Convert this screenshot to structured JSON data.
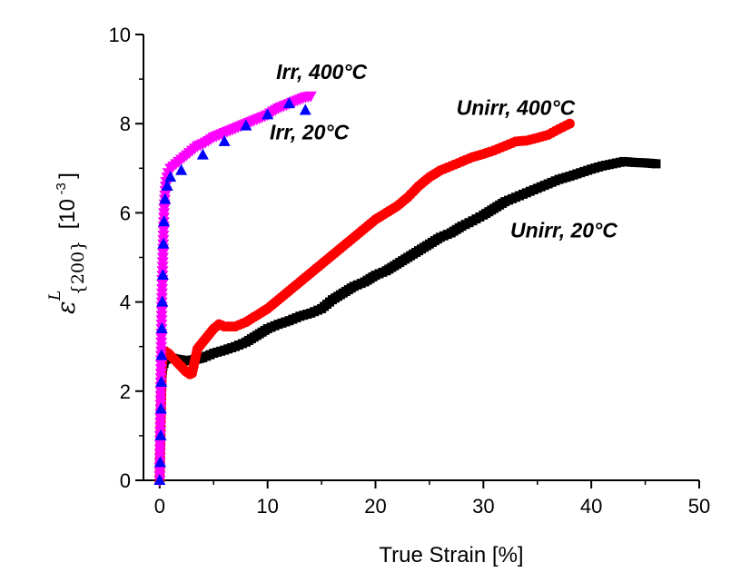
{
  "chart_data": {
    "type": "scatter",
    "title": "",
    "xlabel": "True Strain [%]",
    "ylabel": {
      "symbol": "ε",
      "superscript": "L",
      "subscript": "{200}",
      "unit_prefix": "[10",
      "unit_exponent": "-3",
      "unit_suffix": "]"
    },
    "xlim": [
      -1.5,
      50
    ],
    "ylim": [
      0,
      10
    ],
    "xticks": [
      0,
      10,
      20,
      30,
      40,
      50
    ],
    "yticks": [
      0,
      2,
      4,
      6,
      8,
      10
    ],
    "xtick_labels": [
      "0",
      "10",
      "20",
      "30",
      "40",
      "50"
    ],
    "ytick_labels": [
      "0",
      "2",
      "4",
      "6",
      "8",
      "10"
    ],
    "grid": false,
    "series": [
      {
        "name": "Unirr, 20°C",
        "color": "#000000",
        "marker": "square",
        "points": [
          [
            0,
            0.0
          ],
          [
            0.05,
            0.6
          ],
          [
            0.1,
            1.3
          ],
          [
            0.15,
            1.9
          ],
          [
            0.2,
            2.3
          ],
          [
            0.3,
            2.55
          ],
          [
            0.5,
            2.7
          ],
          [
            1,
            2.75
          ],
          [
            1.5,
            2.72
          ],
          [
            2,
            2.7
          ],
          [
            2.5,
            2.68
          ],
          [
            3,
            2.7
          ],
          [
            3.5,
            2.72
          ],
          [
            4,
            2.75
          ],
          [
            5,
            2.85
          ],
          [
            6,
            2.92
          ],
          [
            7,
            3.0
          ],
          [
            8,
            3.1
          ],
          [
            9,
            3.25
          ],
          [
            10,
            3.4
          ],
          [
            11,
            3.5
          ],
          [
            12,
            3.58
          ],
          [
            13,
            3.68
          ],
          [
            14,
            3.75
          ],
          [
            15,
            3.85
          ],
          [
            16,
            4.05
          ],
          [
            17,
            4.2
          ],
          [
            18,
            4.35
          ],
          [
            19,
            4.45
          ],
          [
            20,
            4.6
          ],
          [
            21,
            4.7
          ],
          [
            22,
            4.85
          ],
          [
            23,
            5.0
          ],
          [
            24,
            5.15
          ],
          [
            25,
            5.3
          ],
          [
            26,
            5.45
          ],
          [
            27,
            5.55
          ],
          [
            28,
            5.7
          ],
          [
            29,
            5.82
          ],
          [
            30,
            5.95
          ],
          [
            31,
            6.1
          ],
          [
            32,
            6.25
          ],
          [
            33,
            6.35
          ],
          [
            34,
            6.45
          ],
          [
            35,
            6.55
          ],
          [
            36,
            6.65
          ],
          [
            37,
            6.75
          ],
          [
            38,
            6.82
          ],
          [
            39,
            6.9
          ],
          [
            40,
            6.98
          ],
          [
            41,
            7.05
          ],
          [
            42,
            7.1
          ],
          [
            43,
            7.15
          ],
          [
            44,
            7.13
          ],
          [
            45,
            7.12
          ],
          [
            46,
            7.1
          ]
        ]
      },
      {
        "name": "Unirr, 400°C",
        "color": "#ff0000",
        "marker": "circle",
        "points": [
          [
            0,
            0.0
          ],
          [
            0.05,
            0.6
          ],
          [
            0.1,
            1.3
          ],
          [
            0.15,
            1.9
          ],
          [
            0.2,
            2.5
          ],
          [
            0.3,
            2.85
          ],
          [
            0.5,
            2.9
          ],
          [
            0.8,
            2.85
          ],
          [
            1.2,
            2.75
          ],
          [
            1.6,
            2.65
          ],
          [
            2,
            2.55
          ],
          [
            2.4,
            2.45
          ],
          [
            2.8,
            2.38
          ],
          [
            3,
            2.4
          ],
          [
            3.5,
            2.95
          ],
          [
            4,
            3.1
          ],
          [
            4.5,
            3.25
          ],
          [
            5,
            3.4
          ],
          [
            5.5,
            3.5
          ],
          [
            6,
            3.45
          ],
          [
            7,
            3.45
          ],
          [
            8,
            3.55
          ],
          [
            9,
            3.7
          ],
          [
            10,
            3.85
          ],
          [
            11,
            4.05
          ],
          [
            12,
            4.25
          ],
          [
            13,
            4.45
          ],
          [
            14,
            4.65
          ],
          [
            15,
            4.85
          ],
          [
            16,
            5.05
          ],
          [
            17,
            5.25
          ],
          [
            18,
            5.45
          ],
          [
            19,
            5.65
          ],
          [
            20,
            5.85
          ],
          [
            21,
            6.0
          ],
          [
            22,
            6.15
          ],
          [
            23,
            6.35
          ],
          [
            24,
            6.6
          ],
          [
            25,
            6.8
          ],
          [
            26,
            6.95
          ],
          [
            27,
            7.05
          ],
          [
            28,
            7.15
          ],
          [
            29,
            7.25
          ],
          [
            30,
            7.32
          ],
          [
            31,
            7.4
          ],
          [
            32,
            7.5
          ],
          [
            33,
            7.6
          ],
          [
            34,
            7.62
          ],
          [
            35,
            7.68
          ],
          [
            36,
            7.75
          ],
          [
            37,
            7.88
          ],
          [
            38,
            8.0
          ]
        ]
      },
      {
        "name": "Irr, 20°C",
        "color": "#0000ff",
        "marker": "triangle-up",
        "points": [
          [
            0,
            0.0
          ],
          [
            0.05,
            0.4
          ],
          [
            0.1,
            1.0
          ],
          [
            0.12,
            1.6
          ],
          [
            0.15,
            2.2
          ],
          [
            0.18,
            2.8
          ],
          [
            0.2,
            3.4
          ],
          [
            0.25,
            4.0
          ],
          [
            0.3,
            4.6
          ],
          [
            0.35,
            5.3
          ],
          [
            0.4,
            5.8
          ],
          [
            0.5,
            6.3
          ],
          [
            0.7,
            6.6
          ],
          [
            1,
            6.8
          ],
          [
            2,
            6.95
          ],
          [
            4,
            7.3
          ],
          [
            6,
            7.6
          ],
          [
            8,
            7.95
          ],
          [
            10,
            8.2
          ],
          [
            12,
            8.45
          ],
          [
            13.5,
            8.3
          ]
        ]
      },
      {
        "name": "Irr, 400°C",
        "color": "#ff00ff",
        "marker": "triangle-down",
        "points": [
          [
            0,
            0.0
          ],
          [
            0.02,
            0.5
          ],
          [
            0.05,
            1.0
          ],
          [
            0.08,
            1.5
          ],
          [
            0.1,
            2.0
          ],
          [
            0.12,
            2.5
          ],
          [
            0.15,
            3.0
          ],
          [
            0.18,
            3.5
          ],
          [
            0.2,
            4.0
          ],
          [
            0.25,
            4.5
          ],
          [
            0.3,
            5.0
          ],
          [
            0.35,
            5.5
          ],
          [
            0.4,
            6.0
          ],
          [
            0.5,
            6.4
          ],
          [
            0.6,
            6.7
          ],
          [
            0.8,
            6.9
          ],
          [
            1,
            7.0
          ],
          [
            1.5,
            7.1
          ],
          [
            2,
            7.2
          ],
          [
            2.5,
            7.3
          ],
          [
            3,
            7.4
          ],
          [
            3.5,
            7.5
          ],
          [
            4,
            7.55
          ],
          [
            4.5,
            7.62
          ],
          [
            5,
            7.7
          ],
          [
            5.5,
            7.75
          ],
          [
            6,
            7.8
          ],
          [
            6.5,
            7.85
          ],
          [
            7,
            7.9
          ],
          [
            7.5,
            7.95
          ],
          [
            8,
            8.0
          ],
          [
            8.5,
            8.05
          ],
          [
            9,
            8.1
          ],
          [
            9.5,
            8.15
          ],
          [
            10,
            8.2
          ],
          [
            10.5,
            8.28
          ],
          [
            11,
            8.35
          ],
          [
            11.5,
            8.4
          ],
          [
            12,
            8.45
          ],
          [
            12.5,
            8.5
          ],
          [
            13,
            8.55
          ],
          [
            13.5,
            8.6
          ],
          [
            14,
            8.62
          ]
        ]
      }
    ],
    "annotations": [
      {
        "text": "Irr, 400°C",
        "x": 10.8,
        "y": 9.0
      },
      {
        "text": "Irr, 20°C",
        "x": 10.2,
        "y": 7.65
      },
      {
        "text": "Unirr, 400°C",
        "x": 27.5,
        "y": 8.2
      },
      {
        "text": "Unirr, 20°C",
        "x": 32.5,
        "y": 5.45
      }
    ]
  }
}
